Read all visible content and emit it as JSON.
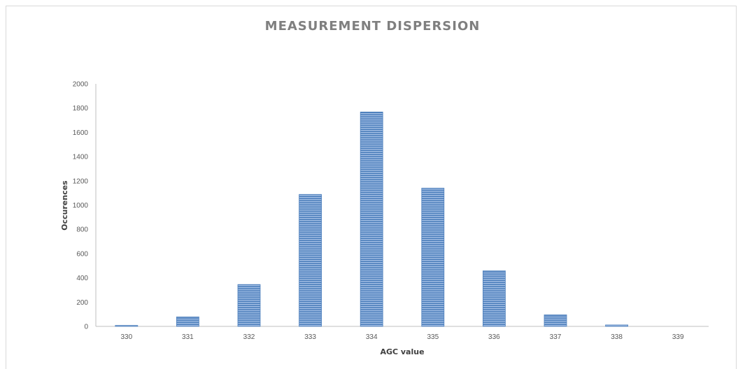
{
  "chart_data": {
    "type": "bar",
    "title": "MEASUREMENT DISPERSION",
    "xlabel": "AGC value",
    "ylabel": "Occurences",
    "categories": [
      "330",
      "331",
      "332",
      "333",
      "334",
      "335",
      "336",
      "337",
      "338",
      "339"
    ],
    "values": [
      8,
      78,
      345,
      1088,
      1768,
      1140,
      458,
      95,
      12,
      0
    ],
    "ylim": [
      0,
      2000
    ],
    "yticks": [
      0,
      200,
      400,
      600,
      800,
      1000,
      1200,
      1400,
      1600,
      1800,
      2000
    ],
    "grid": false,
    "legend": "none",
    "colors": {
      "bar": "#4f81bd",
      "bar_stripe": "#9dbbe3",
      "axis": "#bfbfbf",
      "title": "#7f7f7f"
    }
  }
}
